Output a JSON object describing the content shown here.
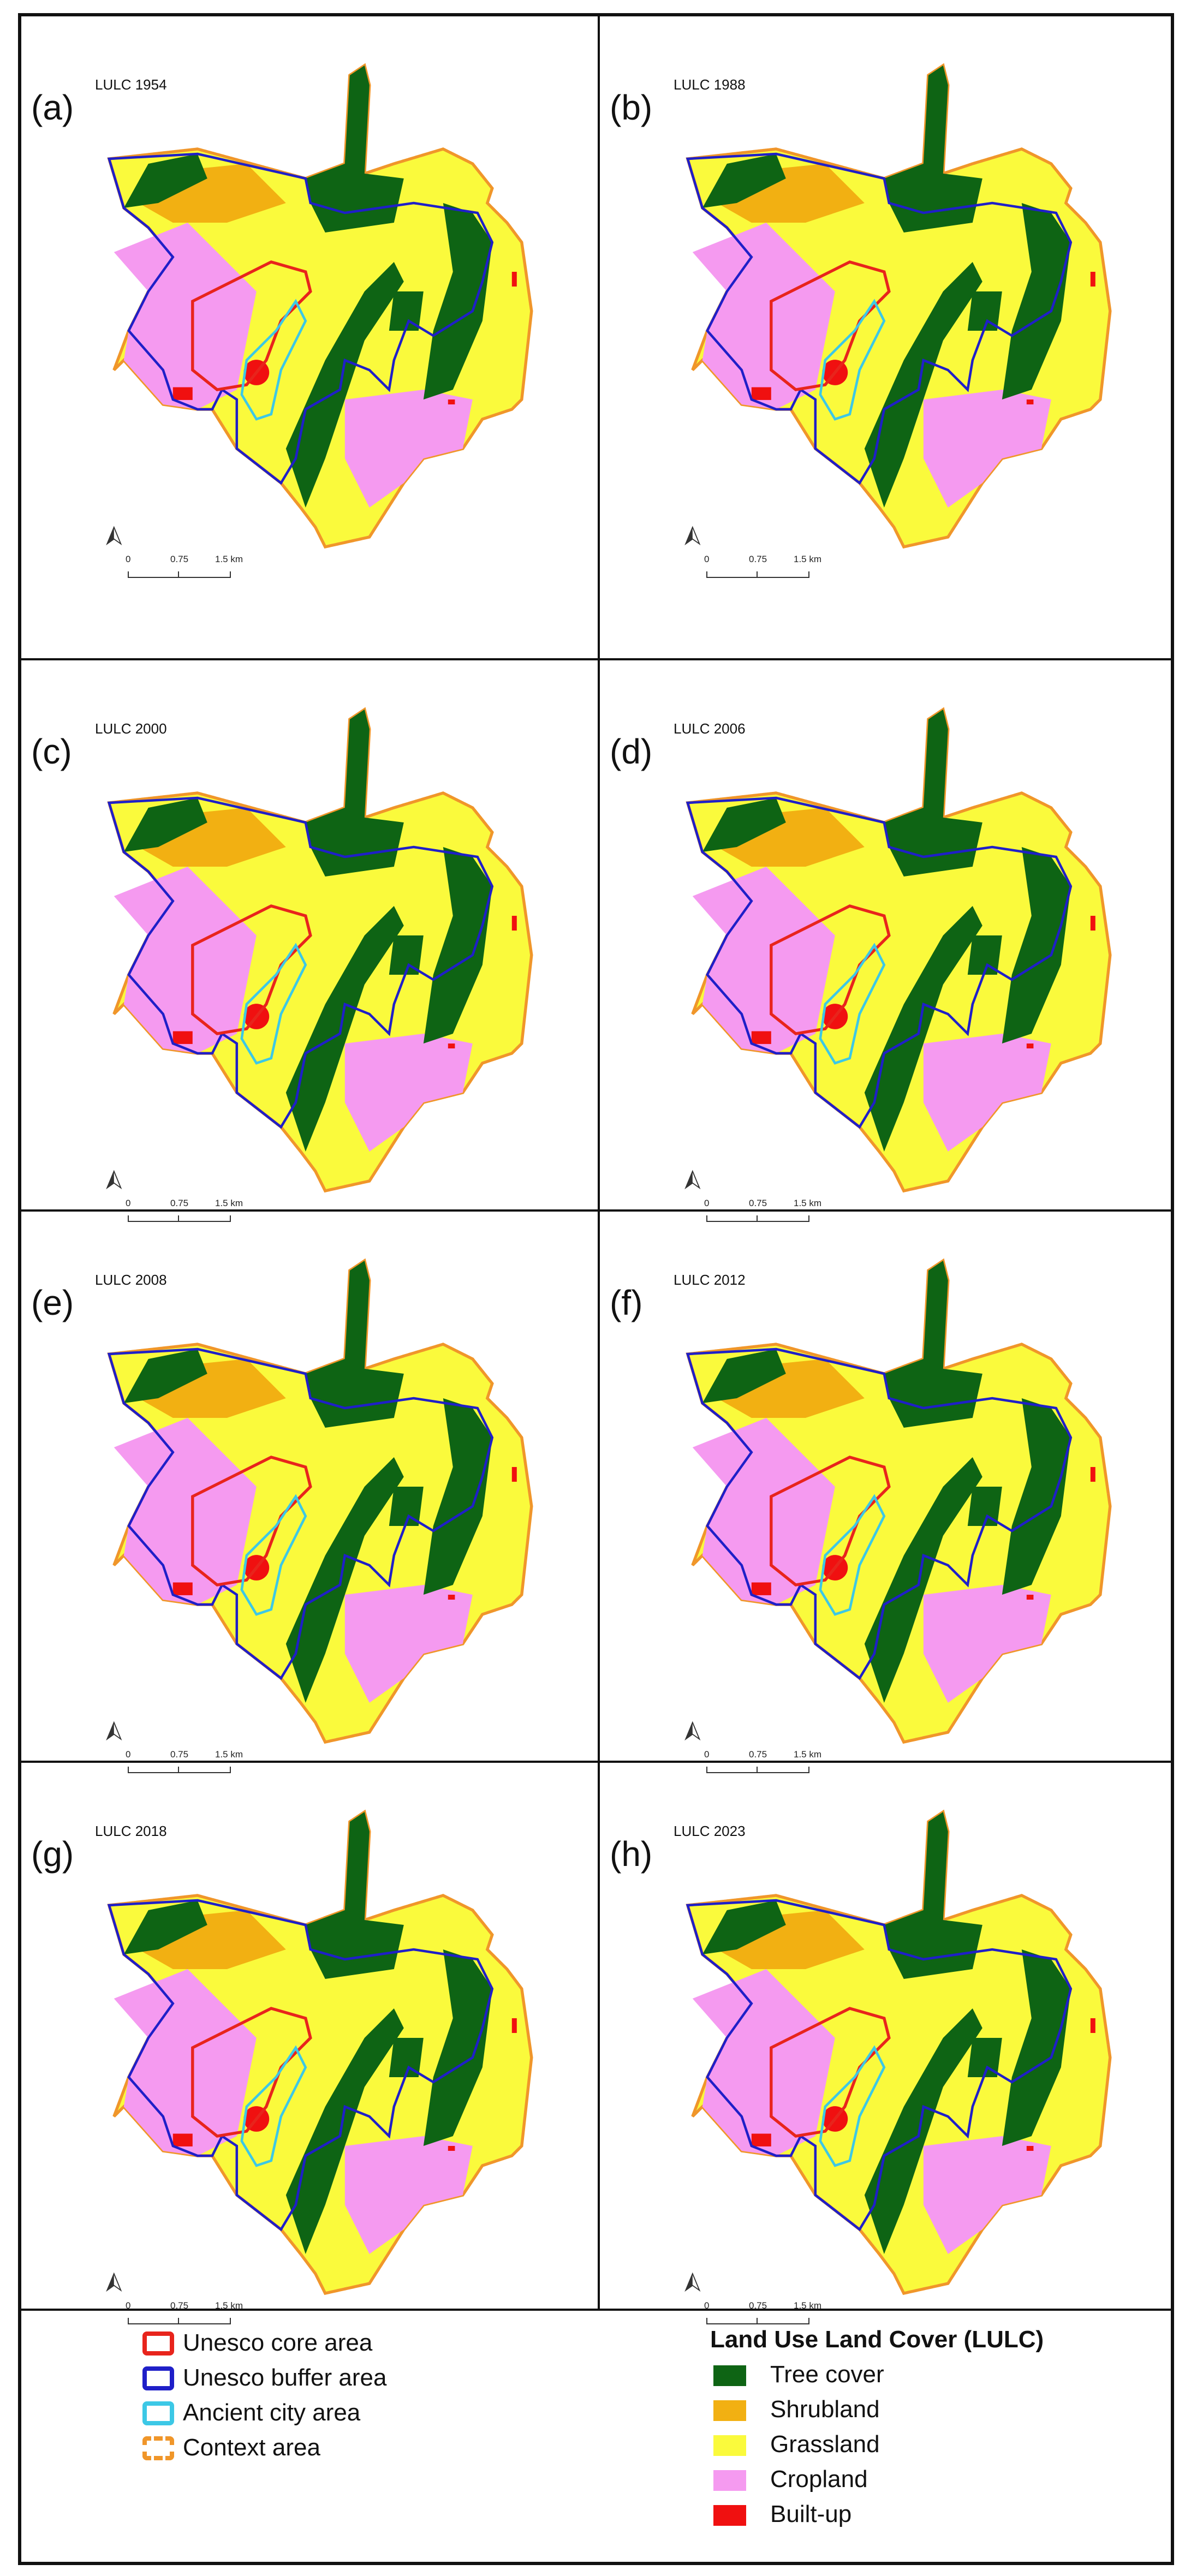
{
  "panels": [
    {
      "letter": "(a)",
      "title": "LULC 1954"
    },
    {
      "letter": "(b)",
      "title": "LULC 1988"
    },
    {
      "letter": "(c)",
      "title": "LULC 2000"
    },
    {
      "letter": "(d)",
      "title": "LULC 2006"
    },
    {
      "letter": "(e)",
      "title": "LULC 2008"
    },
    {
      "letter": "(f)",
      "title": "LULC 2012"
    },
    {
      "letter": "(g)",
      "title": "LULC 2018"
    },
    {
      "letter": "(h)",
      "title": "LULC 2023"
    }
  ],
  "scalebar": {
    "t0": "0",
    "t1": "0.75",
    "t2": "1.5 km"
  },
  "legend_boundaries": [
    {
      "label": "Unesco core area",
      "color": "#e8241c"
    },
    {
      "label": "Unesco buffer area",
      "color": "#1f1fc8"
    },
    {
      "label": "Ancient city area",
      "color": "#3cc8e6"
    },
    {
      "label": "Context area",
      "color": "#f0962a"
    }
  ],
  "legend_lulc_title": "Land Use Land Cover (LULC)",
  "legend_lulc": [
    {
      "label": "Tree cover",
      "color": "#0e6414"
    },
    {
      "label": "Shrubland",
      "color": "#f2b012"
    },
    {
      "label": "Grassland",
      "color": "#fafa3c"
    },
    {
      "label": "Cropland",
      "color": "#f59af0"
    },
    {
      "label": "Built-up",
      "color": "#f01010"
    }
  ]
}
